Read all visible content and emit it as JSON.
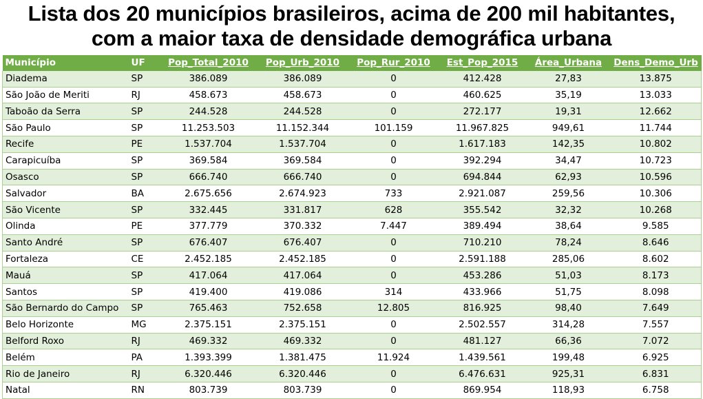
{
  "title": {
    "line1": "Lista dos 20 municípios brasileiros, acima de 200 mil habitantes,",
    "line2": "com a maior taxa de densidade demográfica urbana"
  },
  "table": {
    "headers": [
      "Município",
      "UF",
      "Pop_Total_2010",
      "Pop_Urb_2010",
      "Pop_Rur_2010",
      "Est_Pop_2015",
      "Área_Urbana",
      "Dens_Demo_Urb"
    ],
    "rows": [
      [
        "Diadema",
        "SP",
        "386.089",
        "386.089",
        "0",
        "412.428",
        "27,83",
        "13.875"
      ],
      [
        "São João de Meriti",
        "RJ",
        "458.673",
        "458.673",
        "0",
        "460.625",
        "35,19",
        "13.033"
      ],
      [
        "Taboão da Serra",
        "SP",
        "244.528",
        "244.528",
        "0",
        "272.177",
        "19,31",
        "12.662"
      ],
      [
        "São Paulo",
        "SP",
        "11.253.503",
        "11.152.344",
        "101.159",
        "11.967.825",
        "949,61",
        "11.744"
      ],
      [
        "Recife",
        "PE",
        "1.537.704",
        "1.537.704",
        "0",
        "1.617.183",
        "142,35",
        "10.802"
      ],
      [
        "Carapicuíba",
        "SP",
        "369.584",
        "369.584",
        "0",
        "392.294",
        "34,47",
        "10.723"
      ],
      [
        "Osasco",
        "SP",
        "666.740",
        "666.740",
        "0",
        "694.844",
        "62,93",
        "10.596"
      ],
      [
        "Salvador",
        "BA",
        "2.675.656",
        "2.674.923",
        "733",
        "2.921.087",
        "259,56",
        "10.306"
      ],
      [
        "São Vicente",
        "SP",
        "332.445",
        "331.817",
        "628",
        "355.542",
        "32,32",
        "10.268"
      ],
      [
        "Olinda",
        "PE",
        "377.779",
        "370.332",
        "7.447",
        "389.494",
        "38,64",
        "9.585"
      ],
      [
        "Santo André",
        "SP",
        "676.407",
        "676.407",
        "0",
        "710.210",
        "78,24",
        "8.646"
      ],
      [
        "Fortaleza",
        "CE",
        "2.452.185",
        "2.452.185",
        "0",
        "2.591.188",
        "285,06",
        "8.602"
      ],
      [
        "Mauá",
        "SP",
        "417.064",
        "417.064",
        "0",
        "453.286",
        "51,03",
        "8.173"
      ],
      [
        "Santos",
        "SP",
        "419.400",
        "419.086",
        "314",
        "433.966",
        "51,75",
        "8.098"
      ],
      [
        "São Bernardo do Campo",
        "SP",
        "765.463",
        "752.658",
        "12.805",
        "816.925",
        "98,40",
        "7.649"
      ],
      [
        "Belo Horizonte",
        "MG",
        "2.375.151",
        "2.375.151",
        "0",
        "2.502.557",
        "314,28",
        "7.557"
      ],
      [
        "Belford Roxo",
        "RJ",
        "469.332",
        "469.332",
        "0",
        "481.127",
        "66,36",
        "7.072"
      ],
      [
        "Belém",
        "PA",
        "1.393.399",
        "1.381.475",
        "11.924",
        "1.439.561",
        "199,48",
        "6.925"
      ],
      [
        "Rio de Janeiro",
        "RJ",
        "6.320.446",
        "6.320.446",
        "0",
        "6.476.631",
        "925,31",
        "6.831"
      ],
      [
        "Natal",
        "RN",
        "803.739",
        "803.739",
        "0",
        "869.954",
        "118,93",
        "6.758"
      ]
    ]
  },
  "colors": {
    "header_bg": "#70ad47",
    "band_bg": "#e2efda",
    "border": "#a9d08e"
  }
}
